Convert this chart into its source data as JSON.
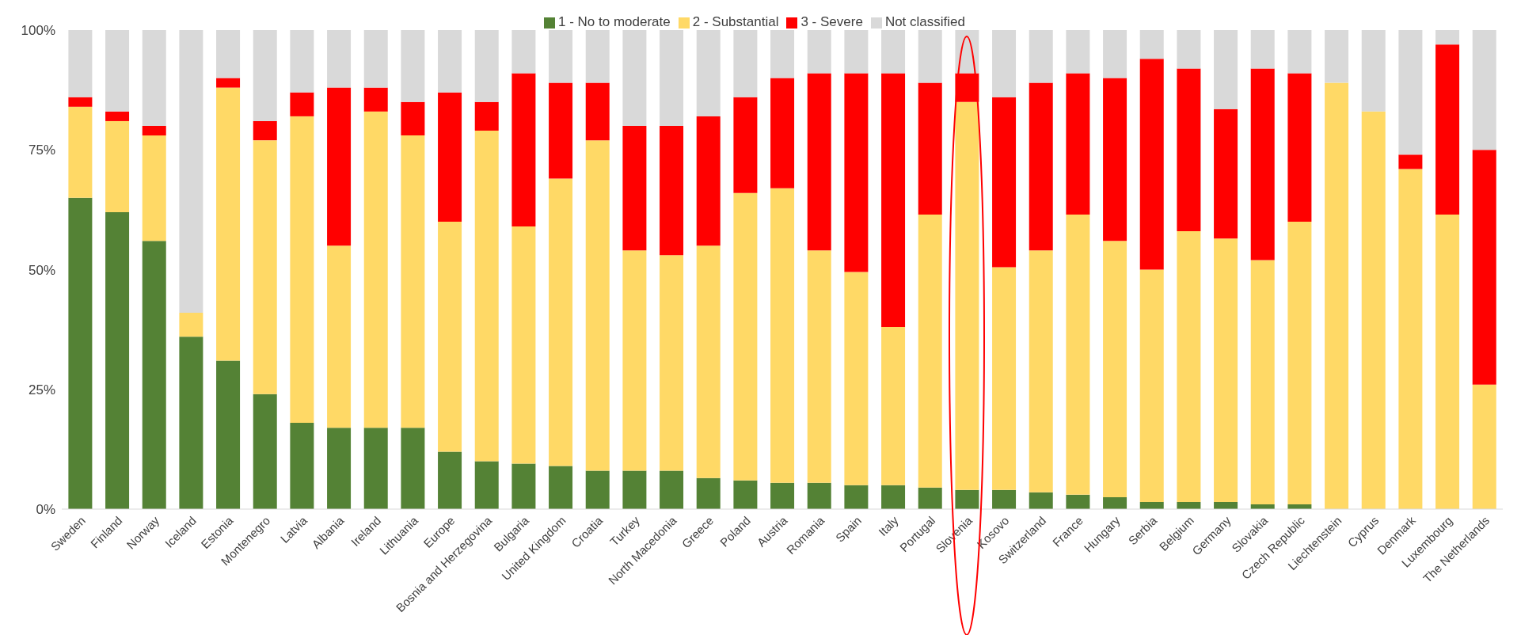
{
  "chart_data": {
    "type": "bar",
    "stacked": true,
    "legend": "top",
    "grid": false,
    "categories": [
      "Sweden",
      "Finland",
      "Norway",
      "Iceland",
      "Estonia",
      "Montenegro",
      "Latvia",
      "Albania",
      "Ireland",
      "Lithuania",
      "Europe",
      "Bosnia and Herzegovina",
      "Bulgaria",
      "United Kingdom",
      "Croatia",
      "Turkey",
      "North Macedonia",
      "Greece",
      "Poland",
      "Austria",
      "Romania",
      "Spain",
      "Italy",
      "Portugal",
      "Slovenia",
      "Kosovo",
      "Switzerland",
      "France",
      "Hungary",
      "Serbia",
      "Belgium",
      "Germany",
      "Slovakia",
      "Czech Republic",
      "Liechtenstein",
      "Cyprus",
      "Denmark",
      "Luxembourg",
      "The Netherlands"
    ],
    "series": [
      {
        "name": "1 - No to moderate",
        "color": "#548235",
        "values": [
          65,
          62,
          56,
          36,
          31,
          24,
          18,
          17,
          17,
          17,
          12,
          10,
          9.5,
          9,
          8,
          8,
          8,
          6.5,
          6,
          5.5,
          5.5,
          5,
          5,
          4.5,
          4,
          4,
          3.5,
          3,
          2.5,
          1.5,
          1.5,
          1.5,
          1,
          1,
          0,
          0,
          0,
          0,
          0
        ]
      },
      {
        "name": "2 - Substantial",
        "color": "#ffd966",
        "values": [
          19,
          19,
          22,
          5,
          57,
          53,
          64,
          38,
          66,
          61,
          48,
          69,
          49.5,
          60,
          69,
          46,
          45,
          48.5,
          60,
          61.5,
          48.5,
          44.5,
          33,
          57,
          81,
          46.5,
          50.5,
          58.5,
          53.5,
          48.5,
          56.5,
          55,
          51,
          59,
          89,
          83,
          71,
          61.5,
          26
        ]
      },
      {
        "name": "3 - Severe",
        "color": "#ff0000",
        "values": [
          2,
          2,
          2,
          0,
          2,
          4,
          5,
          33,
          5,
          7,
          27,
          6,
          32,
          20,
          12,
          26,
          27,
          27,
          20,
          23,
          37,
          41.5,
          53,
          27.5,
          6,
          35.5,
          35,
          29.5,
          34,
          44,
          34,
          27,
          40,
          31,
          0,
          0,
          3,
          35.5,
          49
        ]
      },
      {
        "name": "Not classified",
        "color": "#d9d9d9",
        "values": [
          14,
          17,
          20,
          59,
          10,
          19,
          13,
          12,
          12,
          15,
          13,
          15,
          9,
          11,
          11,
          20,
          20,
          18,
          14,
          10,
          9,
          9,
          9,
          11,
          9,
          14,
          11,
          9,
          10,
          6,
          8,
          16.5,
          8,
          9,
          11,
          17,
          26,
          3,
          25
        ]
      }
    ],
    "ylim": [
      0,
      100
    ],
    "yticks": [
      {
        "value": 0,
        "label": "0%"
      },
      {
        "value": 25,
        "label": "25%"
      },
      {
        "value": 50,
        "label": "50%"
      },
      {
        "value": 75,
        "label": "75%"
      },
      {
        "value": 100,
        "label": "100%"
      }
    ]
  }
}
